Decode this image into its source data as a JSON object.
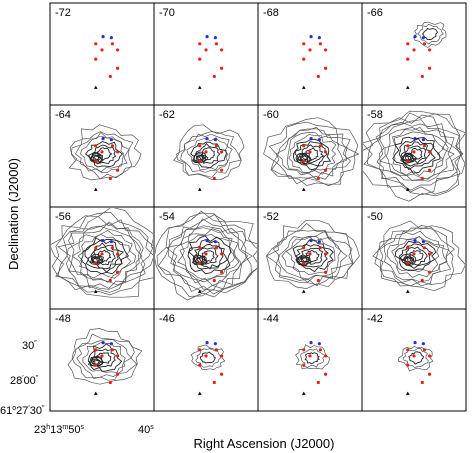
{
  "figure": {
    "x_axis_title": "Right Ascension (J2000)",
    "y_axis_title": "Declination (J2000)",
    "x_ticks": [
      {
        "h": "23",
        "hu": "h",
        "m": "13",
        "mu": "m",
        "s": "50",
        "su": "s"
      },
      {
        "s": "40",
        "su": "s"
      }
    ],
    "y_ticks": [
      "30″",
      "28′00″",
      "61°27′30″"
    ],
    "y_tick_parts": [
      {
        "main": "30",
        "sup": "″"
      },
      {
        "main": "28",
        "sup2": "′",
        "main2": "00",
        "sup3": "″"
      },
      {
        "main": "61",
        "sup": "o",
        "main2": "27",
        "sup2": "′",
        "main3": "30",
        "sup3": "″"
      }
    ],
    "panels": [
      {
        "velocity": "-72",
        "emission": 0
      },
      {
        "velocity": "-70",
        "emission": 0
      },
      {
        "velocity": "-68",
        "emission": 0
      },
      {
        "velocity": "-66",
        "emission": 1
      },
      {
        "velocity": "-64",
        "emission": 2
      },
      {
        "velocity": "-62",
        "emission": 2
      },
      {
        "velocity": "-60",
        "emission": 3
      },
      {
        "velocity": "-58",
        "emission": 4
      },
      {
        "velocity": "-56",
        "emission": 4
      },
      {
        "velocity": "-54",
        "emission": 4
      },
      {
        "velocity": "-52",
        "emission": 3
      },
      {
        "velocity": "-50",
        "emission": 3
      },
      {
        "velocity": "-48",
        "emission": 2
      },
      {
        "velocity": "-46",
        "emission": 1
      },
      {
        "velocity": "-44",
        "emission": 1
      },
      {
        "velocity": "-42",
        "emission": 1
      }
    ],
    "marker_colors": {
      "red": "#e8201c",
      "blue": "#2a2ad8",
      "black": "#000000"
    }
  }
}
